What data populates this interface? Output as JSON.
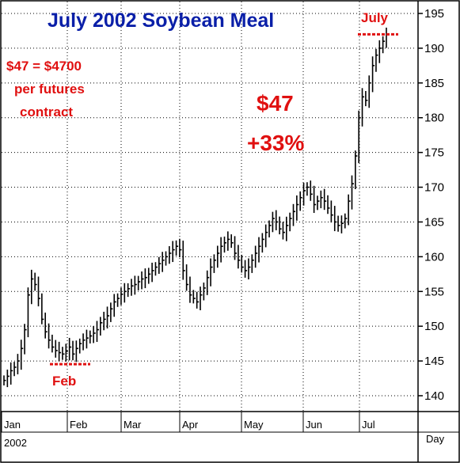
{
  "chart_data": {
    "type": "ohlc",
    "title": "July 2002 Soybean Meal",
    "ylim": [
      137,
      198
    ],
    "yticks": [
      140,
      145,
      150,
      155,
      160,
      165,
      170,
      175,
      180,
      185,
      190,
      195
    ],
    "xticks": [
      "Jan",
      "Feb",
      "Mar",
      "Apr",
      "May",
      "Jun",
      "Jul"
    ],
    "year_label": "2002",
    "x_axis_unit": "Day",
    "grid": true,
    "series_daily_close": [
      142.2,
      142.8,
      143.6,
      144.1,
      145.0,
      146.8,
      149.5,
      154.5,
      156.8,
      156.0,
      154.0,
      151.0,
      149.2,
      148.0,
      147.0,
      146.5,
      146.2,
      146.0,
      146.4,
      147.0,
      146.0,
      146.8,
      147.5,
      148.0,
      148.3,
      148.6,
      149.0,
      149.5,
      150.5,
      151.0,
      151.5,
      152.5,
      153.5,
      154.0,
      154.6,
      155.0,
      155.4,
      155.8,
      156.0,
      156.4,
      156.8,
      157.0,
      157.5,
      158.0,
      158.5,
      159.0,
      159.5,
      160.0,
      160.5,
      161.0,
      161.5,
      161.0,
      158.0,
      156.0,
      154.5,
      154.0,
      153.5,
      154.5,
      155.5,
      157.0,
      158.5,
      159.5,
      160.5,
      161.5,
      162.0,
      162.5,
      162.0,
      160.5,
      159.5,
      158.5,
      158.0,
      158.5,
      159.5,
      160.5,
      161.5,
      162.5,
      163.5,
      164.5,
      165.5,
      165.0,
      164.0,
      163.5,
      164.5,
      165.5,
      166.5,
      167.5,
      168.5,
      169.5,
      170.0,
      169.0,
      167.5,
      168.0,
      168.5,
      168.0,
      167.0,
      166.0,
      165.0,
      164.5,
      164.8,
      165.5,
      168.0,
      170.5,
      174.5,
      180.0,
      183.0,
      182.5,
      185.0,
      187.5,
      189.0,
      190.0,
      191.0,
      192.0
    ],
    "annotations": {
      "note_line1": "$47 = $4700",
      "note_line2": "per futures",
      "note_line3": "contract",
      "gain_amount": "$47",
      "gain_percent": "+33%",
      "low_label": "Feb",
      "low_value": 145,
      "high_label": "July",
      "high_value": 192
    },
    "colors": {
      "title": "#0a1fa8",
      "annotation": "#e01010",
      "bars": "#000000",
      "background": "#ffffff"
    }
  }
}
